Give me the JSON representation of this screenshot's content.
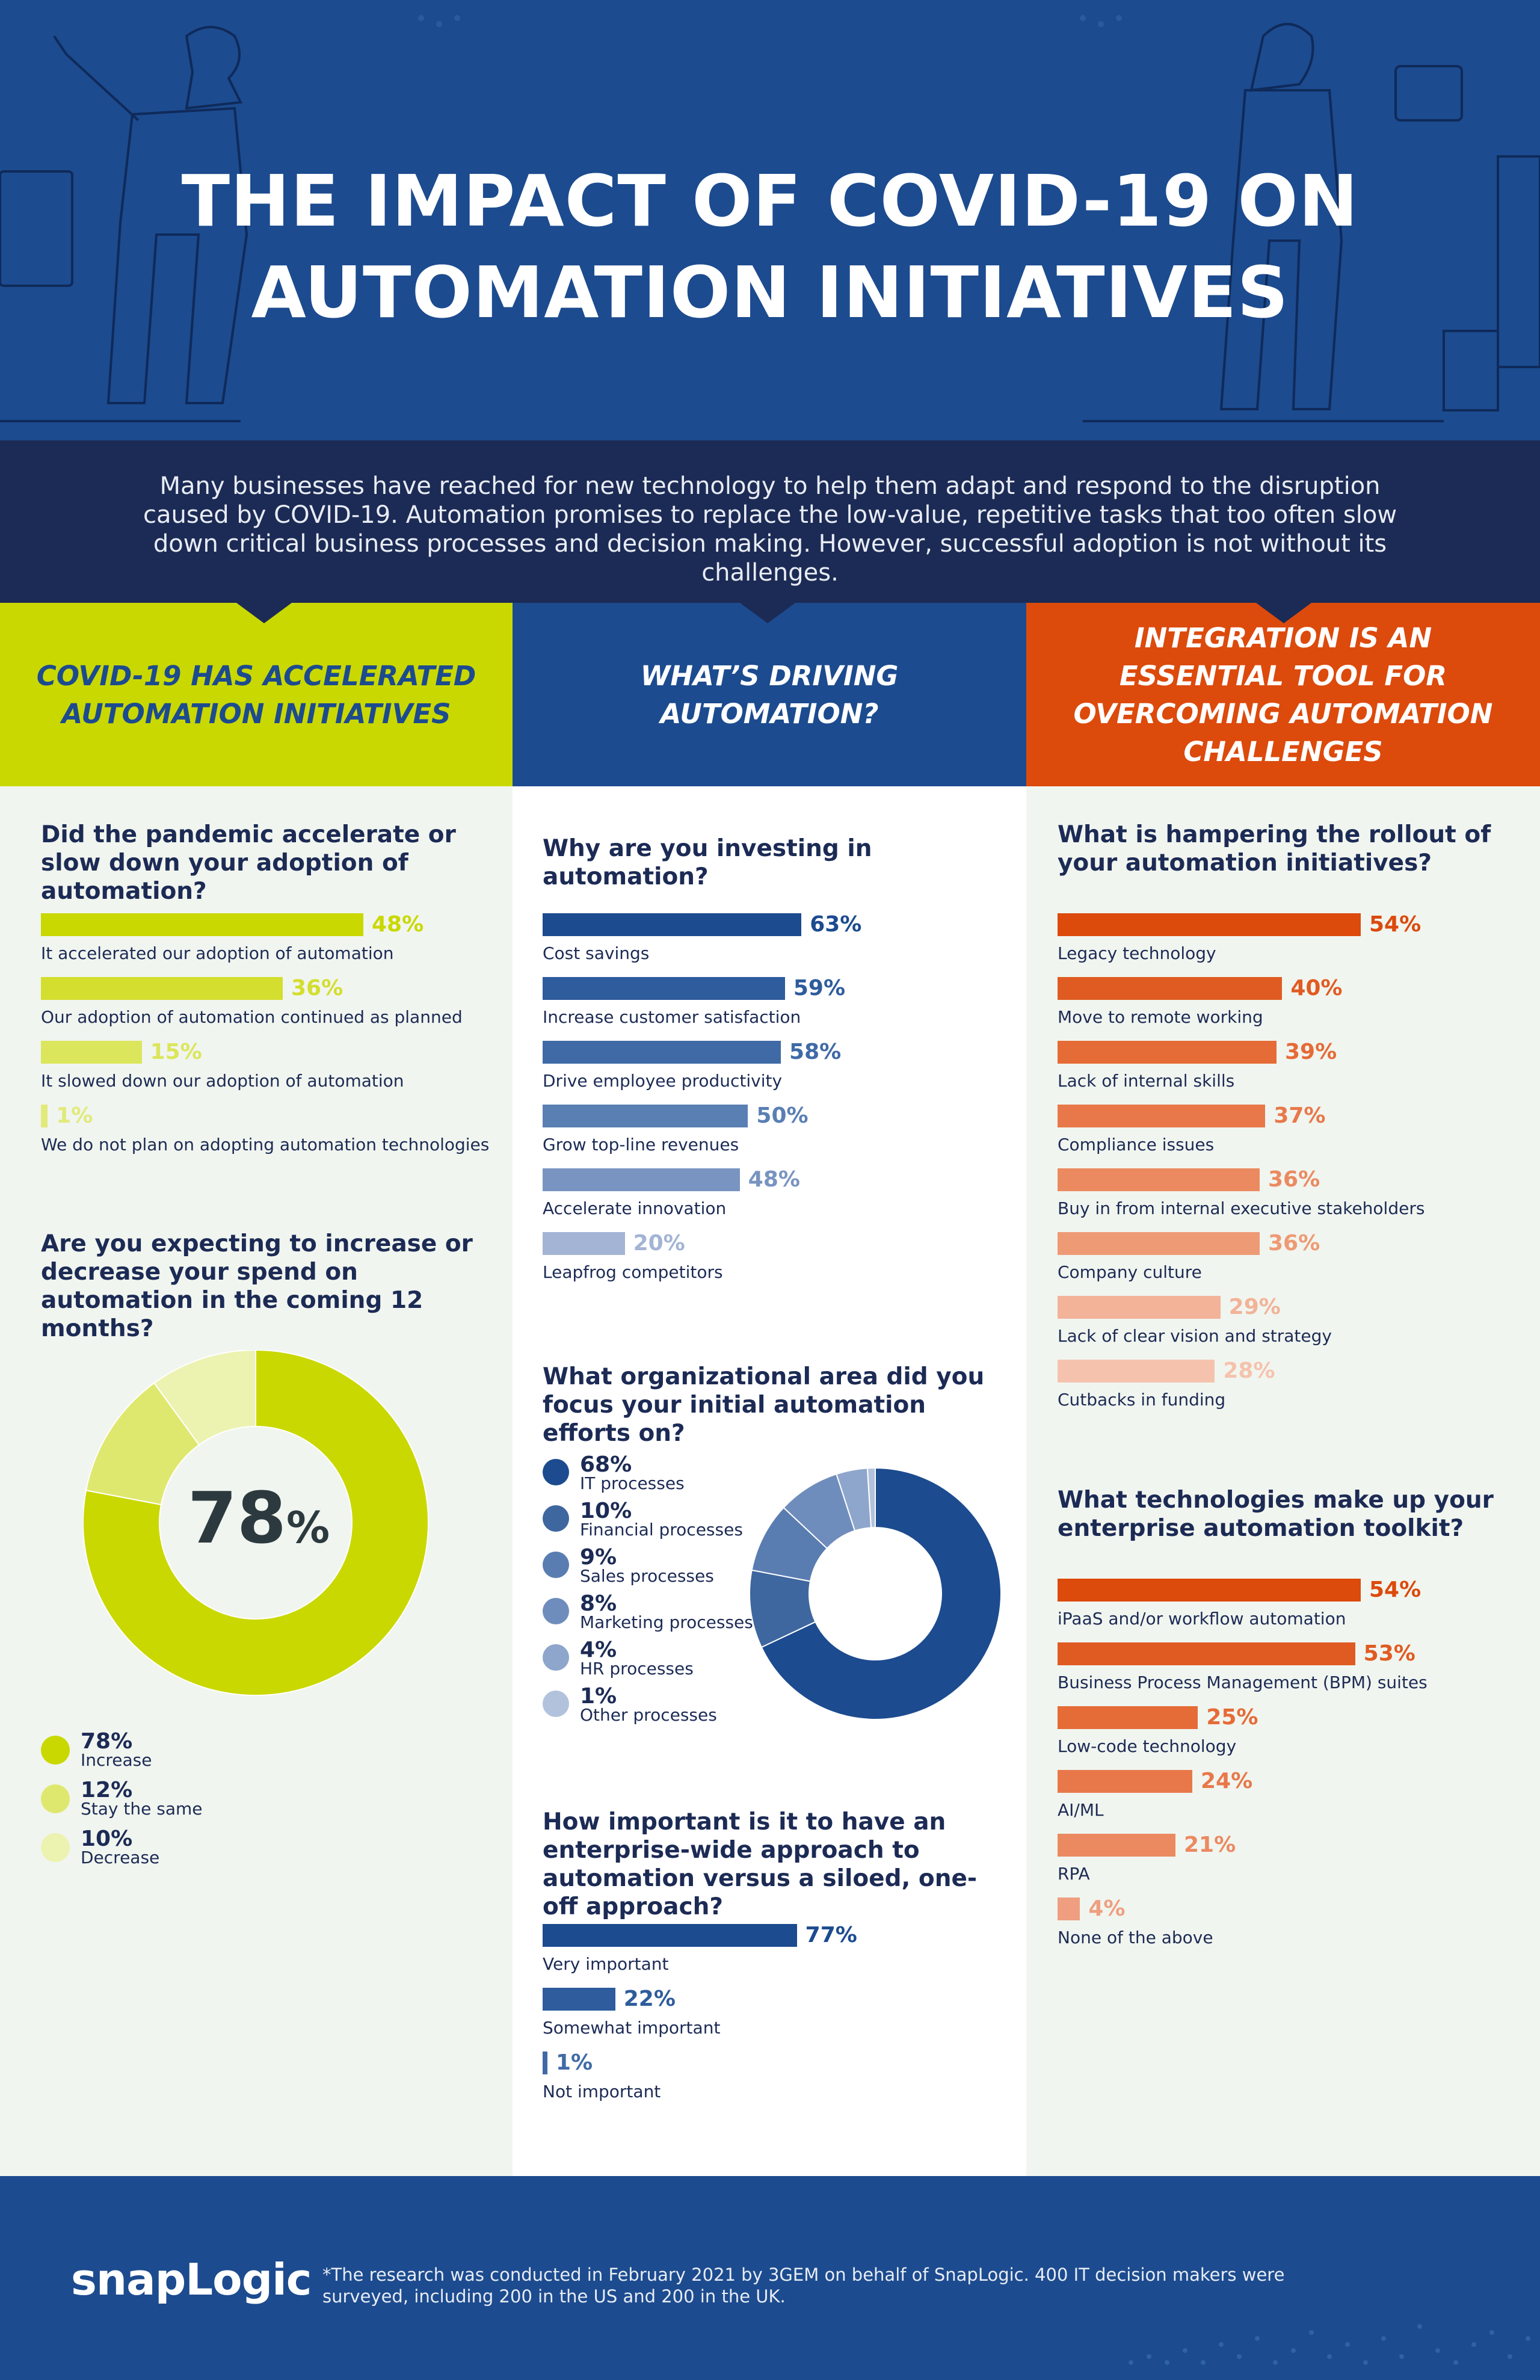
{
  "header": {
    "title_line1": "THE IMPACT OF COVID-19 ON",
    "title_line2": "AUTOMATION INITIATIVES"
  },
  "intro": {
    "text": "Many businesses have reached for new technology to help them adapt and respond to the disruption caused by COVID-19. Automation promises to replace the low-value, repetitive tasks that too often slow down critical business processes and decision making. However, successful adoption is not without its challenges."
  },
  "columns": {
    "col1_heading": "COVID-19 HAS ACCELERATED AUTOMATION INITIATIVES",
    "col2_heading": "WHAT’S DRIVING AUTOMATION?",
    "col3_heading": "INTEGRATION IS AN ESSENTIAL TOOL FOR OVERCOMING AUTOMATION CHALLENGES"
  },
  "colors": {
    "lime": "#c9d800",
    "navy": "#1c4b8f",
    "dark_navy": "#1c2b55",
    "orange": "#dc4a0c"
  },
  "chart_data": [
    {
      "type": "bar",
      "title": "Did the pandemic accelerate or slow down your adoption of automation?",
      "categories": [
        "It accelerated our adoption of automation",
        "Our adoption of automation continued as planned",
        "It slowed down our adoption of automation",
        "We do not plan on adopting automation technologies"
      ],
      "values": [
        48,
        36,
        15,
        1
      ],
      "value_labels": [
        "48%",
        "36%",
        "15%",
        "1%"
      ],
      "colors": [
        "#c9d800",
        "#d3de2e",
        "#dbe65c",
        "#e1ea7a"
      ],
      "max": 60
    },
    {
      "type": "pie",
      "title": "Are you expecting to increase or decrease your spend on automation in the coming 12 months?",
      "center_value": "78",
      "center_unit": "%",
      "categories": [
        "Increase",
        "Stay the same",
        "Decrease"
      ],
      "values": [
        78,
        12,
        10
      ],
      "value_labels": [
        "78%",
        "12%",
        "10%"
      ],
      "colors": [
        "#c9d800",
        "#dfe86e",
        "#ecf2b0"
      ]
    },
    {
      "type": "bar",
      "title": "Why are you investing in automation?",
      "categories": [
        "Cost savings",
        "Increase customer satisfaction",
        "Drive employee productivity",
        "Grow top-line revenues",
        "Accelerate innovation",
        "Leapfrog competitors"
      ],
      "values": [
        63,
        59,
        58,
        50,
        48,
        20
      ],
      "value_labels": [
        "63%",
        "59%",
        "58%",
        "50%",
        "48%",
        "20%"
      ],
      "colors": [
        "#1c4b8f",
        "#2e5c9c",
        "#3f6aa6",
        "#5a7fb3",
        "#7994c0",
        "#a3b4d4"
      ],
      "max": 70
    },
    {
      "type": "pie",
      "title": "What organizational area did you focus your initial automation efforts on?",
      "categories": [
        "IT processes",
        "Financial processes",
        "Sales processes",
        "Marketing processes",
        "HR processes",
        "Other processes"
      ],
      "values": [
        68,
        10,
        9,
        8,
        4,
        1
      ],
      "value_labels": [
        "68%",
        "10%",
        "9%",
        "8%",
        "4%",
        "1%"
      ],
      "colors": [
        "#1c4b8f",
        "#3f679f",
        "#5a7db1",
        "#6f8dbc",
        "#8ea6cb",
        "#b3c2dc"
      ]
    },
    {
      "type": "bar",
      "title": "How important is it to have an enterprise-wide approach to automation versus a siloed, one-off approach?",
      "categories": [
        "Very important",
        "Somewhat important",
        "Not important"
      ],
      "values": [
        77,
        22,
        1
      ],
      "value_labels": [
        "77%",
        "22%",
        "1%"
      ],
      "colors": [
        "#1c4b8f",
        "#2e5c9c",
        "#3f6aa6"
      ],
      "max": 92
    },
    {
      "type": "bar",
      "title": "What is hampering the rollout of your automation initiatives?",
      "categories": [
        "Legacy technology",
        "Move to remote working",
        "Lack of internal skills",
        "Compliance issues",
        "Buy in from internal executive stakeholders",
        "Company culture",
        "Lack of clear vision and strategy",
        "Cutbacks in funding"
      ],
      "values": [
        54,
        40,
        39,
        37,
        36,
        36,
        29,
        28
      ],
      "value_labels": [
        "54%",
        "40%",
        "39%",
        "37%",
        "36%",
        "36%",
        "29%",
        "28%"
      ],
      "colors": [
        "#dc4a0c",
        "#e05b22",
        "#e56b37",
        "#e8784a",
        "#eb8a61",
        "#ee9a75",
        "#f2b399",
        "#f5c3ad"
      ],
      "max": 60
    },
    {
      "type": "bar",
      "title": "What technologies make up your enterprise automation toolkit?",
      "categories": [
        "iPaaS and/or workflow automation",
        "Business Process Management (BPM) suites",
        "Low-code technology",
        "AI/ML",
        "RPA",
        "None of the above"
      ],
      "values": [
        54,
        53,
        25,
        24,
        21,
        4
      ],
      "value_labels": [
        "54%",
        "53%",
        "25%",
        "24%",
        "21%",
        "4%"
      ],
      "colors": [
        "#dc4a0c",
        "#e05b22",
        "#e56b37",
        "#e8784a",
        "#eb8a61",
        "#ef9f80"
      ],
      "max": 60
    }
  ],
  "footer": {
    "logo": "snapLogic",
    "footnote": "*The research was conducted in February 2021 by 3GEM on behalf of SnapLogic. 400 IT decision makers were surveyed, including 200 in the US and 200 in the UK."
  }
}
